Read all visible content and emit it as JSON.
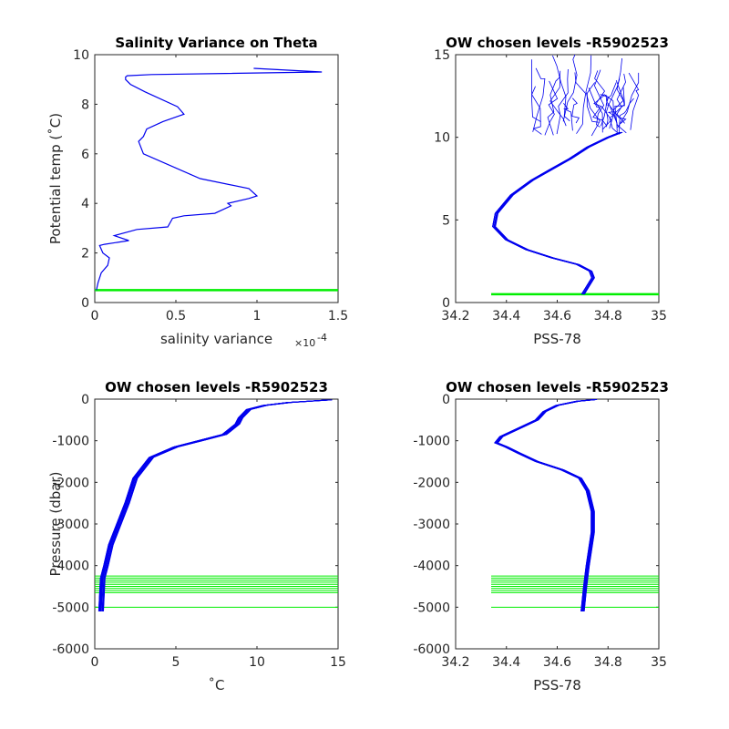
{
  "colors": {
    "profile": "#0000ee",
    "levels": "#00ee00",
    "axis": "#262626"
  },
  "chart_data": [
    {
      "type": "line",
      "title": "Salinity Variance on Theta",
      "xlabel": "salinity variance",
      "x_exponent_label": "×10",
      "x_exponent_power": "-4",
      "ylabel": "Potential temp (˚C)",
      "xlim": [
        0,
        1.5
      ],
      "ylim": [
        0,
        10
      ],
      "xticks": [
        0,
        0.5,
        1,
        1.5
      ],
      "xtick_labels": [
        "0",
        "0.5",
        "1",
        "1.5"
      ],
      "yticks": [
        0,
        2,
        4,
        6,
        8,
        10
      ],
      "ytick_labels": [
        "0",
        "2",
        "4",
        "6",
        "8",
        "10"
      ],
      "series": [
        {
          "role": "profile",
          "x": [
            0.01,
            0.02,
            0.04,
            0.08,
            0.09,
            0.05,
            0.03,
            0.06,
            0.21,
            0.12,
            0.26,
            0.45,
            0.48,
            0.55,
            0.74,
            0.84,
            0.82,
            0.95,
            1.0,
            0.95,
            0.65,
            0.3,
            0.27,
            0.3,
            0.32,
            0.42,
            0.55,
            0.51,
            0.31,
            0.22,
            0.19,
            0.19,
            0.2,
            0.35,
            1.4,
            0.98
          ],
          "y": [
            0.5,
            0.8,
            1.2,
            1.5,
            1.8,
            2.0,
            2.3,
            2.35,
            2.5,
            2.7,
            2.95,
            3.05,
            3.4,
            3.5,
            3.6,
            3.9,
            4.0,
            4.2,
            4.3,
            4.6,
            5.0,
            6.0,
            6.5,
            6.7,
            7.0,
            7.3,
            7.6,
            7.9,
            8.5,
            8.8,
            9.0,
            9.1,
            9.15,
            9.2,
            9.3,
            9.45
          ]
        }
      ],
      "level_lines_y": [
        0.5
      ]
    },
    {
      "type": "line",
      "title": "OW chosen levels -R5902523",
      "xlabel": "PSS-78",
      "ylabel": "",
      "xlim": [
        34.2,
        35
      ],
      "ylim": [
        0,
        15
      ],
      "xticks": [
        34.2,
        34.4,
        34.6,
        34.8,
        35
      ],
      "xtick_labels": [
        "34.2",
        "34.4",
        "34.6",
        "34.8",
        "35"
      ],
      "yticks": [
        0,
        5,
        10,
        15
      ],
      "ytick_labels": [
        "0",
        "5",
        "10",
        "15"
      ],
      "series": [
        {
          "role": "profile",
          "x": [
            34.7,
            34.72,
            34.74,
            34.73,
            34.68,
            34.58,
            34.48,
            34.4,
            34.35,
            34.36,
            34.42,
            34.5,
            34.58,
            34.65,
            34.72,
            34.8,
            34.85
          ],
          "y": [
            0.5,
            1.0,
            1.5,
            1.9,
            2.3,
            2.7,
            3.2,
            3.8,
            4.6,
            5.4,
            6.5,
            7.4,
            8.1,
            8.7,
            9.4,
            10.0,
            10.3
          ]
        }
      ],
      "spread_y": [
        10,
        15
      ],
      "spread_x": [
        34.5,
        34.92
      ],
      "level_lines_y": [
        0.5
      ]
    },
    {
      "type": "line",
      "title": "OW chosen levels -R5902523",
      "xlabel": "˚C",
      "ylabel": "Pressure (dbar)",
      "xlim": [
        0,
        15
      ],
      "ylim": [
        -6000,
        0
      ],
      "xticks": [
        0,
        5,
        10,
        15
      ],
      "xtick_labels": [
        "0",
        "5",
        "10",
        "15"
      ],
      "yticks": [
        -6000,
        -5000,
        -4000,
        -3000,
        -2000,
        -1000,
        0
      ],
      "ytick_labels": [
        "-6000",
        "-5000",
        "-4000",
        "-3000",
        "-2000",
        "-1000",
        "0"
      ],
      "series": [
        {
          "role": "profile",
          "x": [
            0.4,
            0.45,
            0.5,
            0.7,
            1.0,
            1.5,
            2.0,
            2.5,
            3.5,
            5.0,
            6.5,
            8.0,
            8.8,
            9.0,
            9.5,
            10.5,
            12.0,
            14.5
          ],
          "y": [
            -5100,
            -4700,
            -4300,
            -4000,
            -3500,
            -3000,
            -2500,
            -1900,
            -1400,
            -1150,
            -1000,
            -850,
            -600,
            -450,
            -250,
            -150,
            -80,
            -20
          ]
        }
      ],
      "level_lines_y": [
        -4250,
        -4300,
        -4350,
        -4400,
        -4450,
        -4500,
        -4550,
        -4600,
        -4650,
        -5000
      ]
    },
    {
      "type": "line",
      "title": "OW chosen levels -R5902523",
      "xlabel": "PSS-78",
      "ylabel": "",
      "xlim": [
        34.2,
        35
      ],
      "ylim": [
        -6000,
        0
      ],
      "xticks": [
        34.2,
        34.4,
        34.6,
        34.8,
        35
      ],
      "xtick_labels": [
        "34.2",
        "34.4",
        "34.6",
        "34.8",
        "35"
      ],
      "yticks": [
        -6000,
        -5000,
        -4000,
        -3000,
        -2000,
        -1000,
        0
      ],
      "ytick_labels": [
        "-6000",
        "-5000",
        "-4000",
        "-3000",
        "-2000",
        "-1000",
        "0"
      ],
      "series": [
        {
          "role": "profile",
          "x": [
            34.7,
            34.71,
            34.72,
            34.74,
            34.74,
            34.72,
            34.69,
            34.62,
            34.52,
            34.45,
            34.4,
            34.36,
            34.38,
            34.45,
            34.52,
            34.55,
            34.6,
            34.68,
            34.75
          ],
          "y": [
            -5100,
            -4500,
            -4000,
            -3200,
            -2700,
            -2200,
            -1900,
            -1700,
            -1500,
            -1300,
            -1150,
            -1050,
            -900,
            -700,
            -500,
            -300,
            -150,
            -50,
            -10
          ]
        }
      ],
      "level_lines_y": [
        -4250,
        -4300,
        -4350,
        -4400,
        -4450,
        -4500,
        -4550,
        -4600,
        -4650,
        -5000
      ]
    }
  ]
}
